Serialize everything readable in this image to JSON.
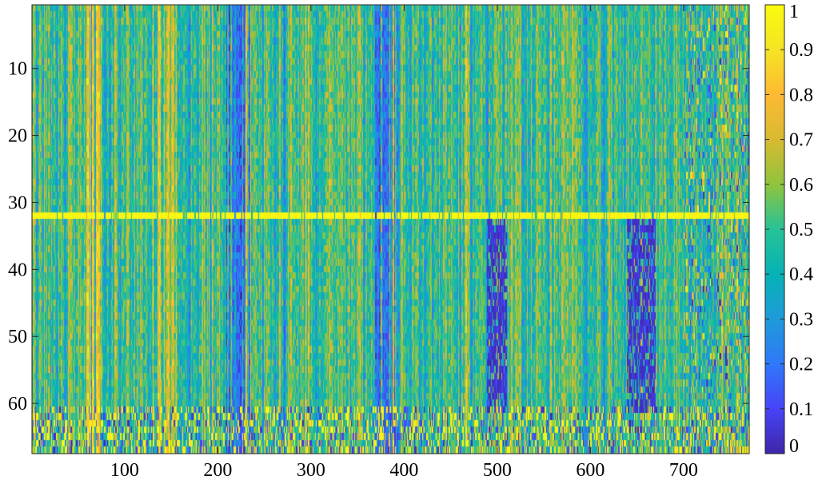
{
  "chart_data": {
    "type": "heatmap",
    "title": "",
    "xlabel": "",
    "ylabel": "",
    "n_cols": 770,
    "n_rows": 67,
    "xlim": [
      0.5,
      770.5
    ],
    "ylim": [
      0.5,
      67.5
    ],
    "x_ticks": [
      100,
      200,
      300,
      400,
      500,
      600,
      700
    ],
    "y_ticks": [
      10,
      20,
      30,
      40,
      50,
      60
    ],
    "colorbar": {
      "min": 0,
      "max": 1,
      "ticks": [
        0,
        0.1,
        0.2,
        0.3,
        0.4,
        0.5,
        0.6,
        0.7,
        0.8,
        0.9,
        1
      ],
      "colormap": "parula",
      "colormap_stops": [
        "#3e26a8",
        "#4743f8",
        "#2f78f9",
        "#1e9bd9",
        "#06b2b5",
        "#27c297",
        "#8fc43c",
        "#d8ba31",
        "#feb932",
        "#f5e424",
        "#f9fb0e"
      ]
    },
    "bright_row": 32,
    "dark_bands": [
      [
        210,
        235,
        "all"
      ],
      [
        370,
        395,
        "all"
      ],
      [
        490,
        510,
        "lower"
      ],
      [
        640,
        670,
        "lower"
      ]
    ],
    "bright_bands": [
      [
        60,
        75,
        "all"
      ],
      [
        130,
        140,
        "all"
      ]
    ],
    "values_note": "Value matrix is a dense 67x770 grid in [0,1]; rendered via procedural approximation"
  }
}
